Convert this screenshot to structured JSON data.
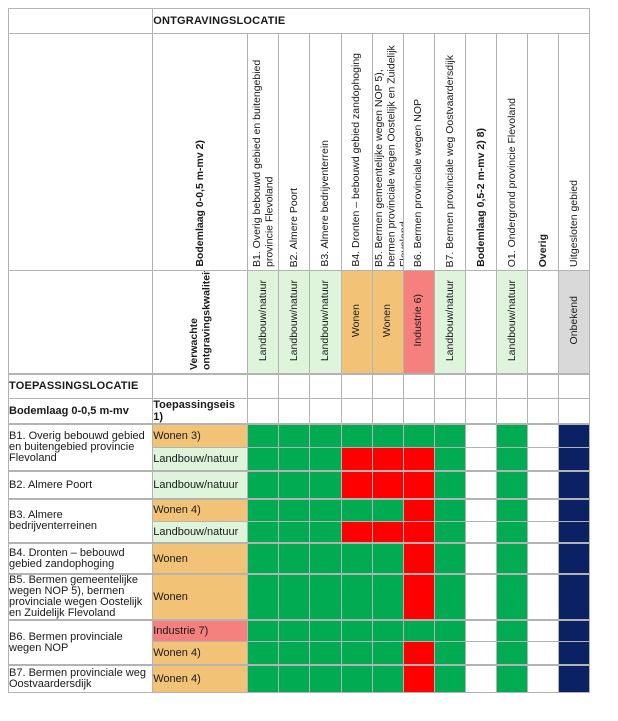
{
  "colors": {
    "green": "#00ab52",
    "red": "#ff0000",
    "navy": "#0a2263",
    "orange": "#f2c377",
    "lightgreen": "#def5dc",
    "salmon": "#f5807e",
    "gray": "#d9d9d9",
    "white": "#ffffff",
    "grid": "#b3b3b3"
  },
  "excavation_section": {
    "title": "ONTGRAVINGSLOCATIE"
  },
  "excavation_columns": [
    {
      "label": "Bodemlaag 0-0,5 m-mv 2)",
      "bold": true
    },
    {
      "label": "B1. Overig bebouwd gebied en buitengebied provincie Flevoland",
      "bold": false
    },
    {
      "label": "B2. Almere Poort",
      "bold": false
    },
    {
      "label": "B3. Almere bedrijventerrein",
      "bold": false
    },
    {
      "label": "B4. Dronten – bebouwd gebied zandophoging",
      "bold": false
    },
    {
      "label": "B5. Bermen gemeentelijke wegen NOP 5), bermen provinciale wegen Oostelijk en Zuidelijk Flevoland",
      "bold": false
    },
    {
      "label": "B6. Bermen provinciale wegen NOP",
      "bold": false
    },
    {
      "label": "B7. Bermen provinciale weg Oostvaardersdijk",
      "bold": false
    },
    {
      "label": "Bodemlaag 0,5-2 m-mv 2) 8)",
      "bold": true
    },
    {
      "label": "O1. Ondergrond provincie Flevoland",
      "bold": false
    },
    {
      "label": "Overig",
      "bold": true
    },
    {
      "label": "Uitgesloten gebied",
      "bold": false
    }
  ],
  "expected_quality_row": {
    "label": "Verwachte ontgravingskwaliteit",
    "cells": [
      {
        "text": "Landbouw/natuur",
        "color": "lightgreen"
      },
      {
        "text": "Landbouw/natuur",
        "color": "lightgreen"
      },
      {
        "text": "Landbouw/natuur",
        "color": "lightgreen"
      },
      {
        "text": "Wonen",
        "color": "orange"
      },
      {
        "text": "Wonen",
        "color": "orange"
      },
      {
        "text": "Industrie 6)",
        "color": "salmon"
      },
      {
        "text": "Landbouw/natuur",
        "color": "lightgreen"
      },
      {
        "text": "",
        "color": "white"
      },
      {
        "text": "Landbouw/natuur",
        "color": "lightgreen"
      },
      {
        "text": "",
        "color": "white"
      },
      {
        "text": "Onbekend",
        "color": "gray"
      }
    ]
  },
  "application_section": {
    "title": "TOEPASSINGSLOCATIE",
    "left_subheader": "Bodemlaag 0-0,5 m-mv",
    "right_subheader": "Toepassingseis 1)"
  },
  "application_rows": [
    {
      "location": "B1. Overig bebouwd gebied en buitengebied provincie Flevoland",
      "rowspan": 2,
      "group_start": true,
      "requirement": {
        "text": "Wonen 3)",
        "color": "orange"
      },
      "cells": [
        "green",
        "green",
        "green",
        "green",
        "green",
        "green",
        "green",
        "white",
        "green",
        "white",
        "navy"
      ]
    },
    {
      "requirement": {
        "text": "Landbouw/natuur",
        "color": "lightgreen"
      },
      "cells": [
        "green",
        "green",
        "green",
        "red",
        "red",
        "red",
        "green",
        "white",
        "green",
        "white",
        "navy"
      ]
    },
    {
      "location": "B2. Almere Poort",
      "rowspan": 1,
      "group_start": true,
      "requirement": {
        "text": "Landbouw/natuur",
        "color": "lightgreen"
      },
      "cells": [
        "green",
        "green",
        "green",
        "red",
        "red",
        "red",
        "green",
        "white",
        "green",
        "white",
        "navy"
      ]
    },
    {
      "location": "B3. Almere bedrijventerreinen",
      "rowspan": 2,
      "group_start": true,
      "requirement": {
        "text": "Wonen 4)",
        "color": "orange"
      },
      "cells": [
        "green",
        "green",
        "green",
        "green",
        "green",
        "red",
        "green",
        "white",
        "green",
        "white",
        "navy"
      ]
    },
    {
      "requirement": {
        "text": "Landbouw/natuur",
        "color": "lightgreen"
      },
      "cells": [
        "green",
        "green",
        "green",
        "red",
        "red",
        "red",
        "green",
        "white",
        "green",
        "white",
        "navy"
      ]
    },
    {
      "location": "B4. Dronten – bebouwd gebied zandophoging",
      "rowspan": 1,
      "group_start": true,
      "requirement": {
        "text": "Wonen",
        "color": "orange"
      },
      "cells": [
        "green",
        "green",
        "green",
        "green",
        "green",
        "red",
        "green",
        "white",
        "green",
        "white",
        "navy"
      ]
    },
    {
      "location": "B5. Bermen gemeentelijke wegen NOP 5), bermen provinciale wegen Oostelijk en Zuidelijk Flevoland",
      "rowspan": 1,
      "group_start": true,
      "requirement": {
        "text": "Wonen",
        "color": "orange"
      },
      "cells": [
        "green",
        "green",
        "green",
        "green",
        "green",
        "red",
        "green",
        "white",
        "green",
        "white",
        "navy"
      ]
    },
    {
      "location": "B6. Bermen provinciale wegen NOP",
      "rowspan": 2,
      "group_start": true,
      "requirement": {
        "text": "Industrie 7)",
        "color": "salmon"
      },
      "cells": [
        "green",
        "green",
        "green",
        "green",
        "green",
        "green",
        "green",
        "white",
        "green",
        "white",
        "navy"
      ]
    },
    {
      "requirement": {
        "text": "Wonen 4)",
        "color": "orange"
      },
      "cells": [
        "green",
        "green",
        "green",
        "green",
        "green",
        "red",
        "green",
        "white",
        "green",
        "white",
        "navy"
      ]
    },
    {
      "location": "B7. Bermen provinciale weg Oostvaardersdijk",
      "rowspan": 1,
      "group_start": true,
      "requirement": {
        "text": "Wonen 4)",
        "color": "orange"
      },
      "cells": [
        "green",
        "green",
        "green",
        "green",
        "green",
        "red",
        "green",
        "white",
        "green",
        "white",
        "navy"
      ]
    }
  ]
}
